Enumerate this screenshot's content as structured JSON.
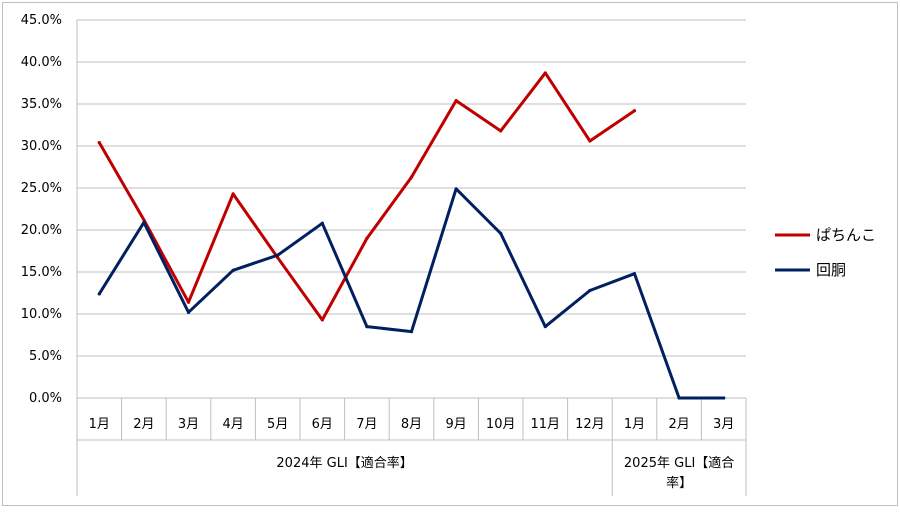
{
  "chart_data": {
    "type": "line",
    "categories": [
      "1月",
      "2月",
      "3月",
      "4月",
      "5月",
      "6月",
      "7月",
      "8月",
      "9月",
      "10月",
      "11月",
      "12月",
      "1月",
      "2月",
      "3月"
    ],
    "category_groups": [
      {
        "label": "2024年 GLI【適合率】",
        "start": 0,
        "end": 11
      },
      {
        "label_lines": [
          "2025年 GLI【適合",
          "率】"
        ],
        "start": 12,
        "end": 14
      }
    ],
    "series": [
      {
        "name": "ぱちんこ",
        "color": "#c00000",
        "values": [
          30.4,
          21.2,
          11.4,
          24.3,
          16.7,
          9.3,
          19.0,
          26.3,
          35.4,
          31.8,
          38.7,
          30.6,
          34.2,
          null,
          null
        ]
      },
      {
        "name": "回胴",
        "color": "#002060",
        "values": [
          12.4,
          20.9,
          10.2,
          15.2,
          17.0,
          20.8,
          8.5,
          7.9,
          24.9,
          19.6,
          8.5,
          12.8,
          14.8,
          0.0,
          0.0
        ]
      }
    ],
    "y_ticks": [
      "0.0%",
      "5.0%",
      "10.0%",
      "15.0%",
      "20.0%",
      "25.0%",
      "30.0%",
      "35.0%",
      "40.0%",
      "45.0%"
    ],
    "ylim": [
      0,
      45
    ],
    "y_unit": "%",
    "grid": true,
    "legend_position": "right",
    "title": "",
    "xlabel": "",
    "ylabel": ""
  }
}
